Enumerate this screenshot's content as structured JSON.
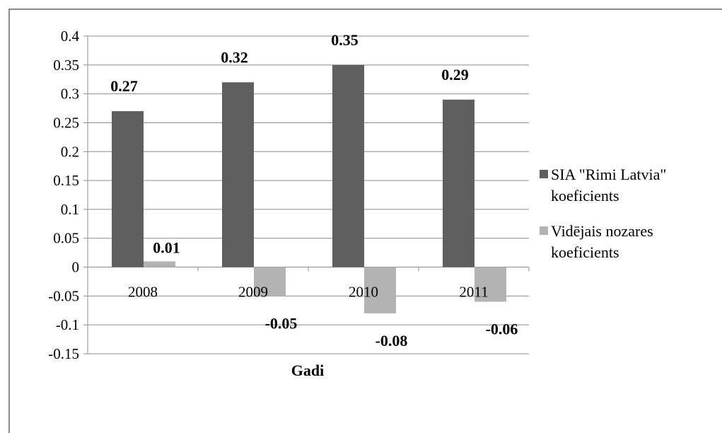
{
  "chart_data": {
    "type": "bar",
    "title": "",
    "xlabel": "Gadi",
    "ylabel": "",
    "categories": [
      "2008",
      "2009",
      "2010",
      "2011"
    ],
    "series": [
      {
        "name_lines": [
          "SIA \"Rimi Latvia\"",
          "koeficients"
        ],
        "values": [
          0.27,
          0.32,
          0.35,
          0.29
        ],
        "labels": [
          "0.27",
          "0.32",
          "0.35",
          "0.29"
        ],
        "color": "#5f5f5f"
      },
      {
        "name_lines": [
          "Vidējais nozares",
          "koeficients"
        ],
        "values": [
          0.01,
          -0.05,
          -0.08,
          -0.06
        ],
        "labels": [
          "0.01",
          "-0.05",
          "-0.08",
          "-0.06"
        ],
        "color": "#b3b3b3"
      }
    ],
    "ylim": [
      -0.15,
      0.4
    ],
    "yticks": [
      "0.4",
      "0.35",
      "0.3",
      "0.25",
      "0.2",
      "0.15",
      "0.1",
      "0.05",
      "0",
      "-0.05",
      "-0.1",
      "-0.15"
    ],
    "grid": true,
    "legend": "right"
  }
}
